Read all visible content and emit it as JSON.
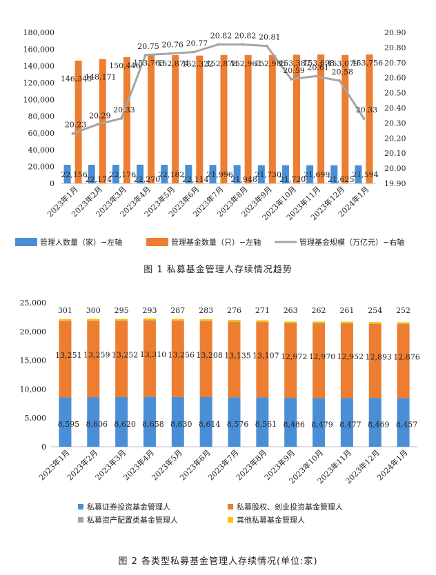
{
  "charts": [
    {
      "type": "bar",
      "caption": "图 1  私募基金管理人存续情况趋势",
      "categories": [
        "2023年1月",
        "2023年2月",
        "2023年3月",
        "2023年4月",
        "2023年5月",
        "2023年6月",
        "2023年7月",
        "2023年8月",
        "2023年9月",
        "2023年10月",
        "2023年11月",
        "2023年12月",
        "2024年1月"
      ],
      "left_axis": {
        "min": 0,
        "max": 180000,
        "ticks": [
          "0",
          "20,000",
          "40,000",
          "60,000",
          "80,000",
          "100,000",
          "120,000",
          "140,000",
          "160,000",
          "180,000"
        ]
      },
      "right_axis": {
        "min": 19.9,
        "max": 20.9,
        "ticks": [
          "19.90",
          "20.00",
          "20.10",
          "20.20",
          "20.30",
          "20.40",
          "20.50",
          "20.60",
          "20.70",
          "20.80",
          "20.90"
        ]
      },
      "series": [
        {
          "name": "管理人数量（家）−左轴",
          "kind": "bar",
          "axis": "left",
          "color": "#4a8fd6",
          "values": [
            22156,
            22174,
            22176,
            22270,
            22182,
            22114,
            21996,
            21948,
            21730,
            21720,
            21699,
            21625,
            21594
          ],
          "labels": [
            "22,156",
            "22,174",
            "22,176",
            "22,270",
            "22,182",
            "22,114",
            "21,996",
            "21,948",
            "21,730",
            "21,720",
            "21,699",
            "21,625",
            "21,594"
          ]
        },
        {
          "name": "管理基金数量（只）−左轴",
          "kind": "bar",
          "axis": "left",
          "color": "#ed7d31",
          "values": [
            146345,
            148171,
            150446,
            153763,
            152874,
            152322,
            152878,
            152961,
            152985,
            153387,
            153698,
            153079,
            153756
          ],
          "labels": [
            "146,345",
            "148,171",
            "150,446",
            "153,763",
            "152,874",
            "152,322",
            "152,878",
            "152,961",
            "152,985",
            "153,387",
            "153,698",
            "153,079",
            "153,756"
          ]
        },
        {
          "name": "管理基金规模（万亿元）−右轴",
          "kind": "line",
          "axis": "right",
          "color": "#a5a5a5",
          "values": [
            20.23,
            20.29,
            20.33,
            20.75,
            20.76,
            20.77,
            20.82,
            20.82,
            20.81,
            20.59,
            20.61,
            20.58,
            20.33
          ],
          "labels": [
            "20.23",
            "20.29",
            "20.33",
            "20.75",
            "20.76",
            "20.77",
            "20.82",
            "20.82",
            "20.81",
            "20.59",
            "20.61",
            "20.58",
            "20.33"
          ]
        }
      ]
    },
    {
      "type": "bar",
      "stacked": true,
      "caption": "图 2  各类型私募基金管理人存续情况(单位:家)",
      "categories": [
        "2023年1月",
        "2023年2月",
        "2023年3月",
        "2023年4月",
        "2023年5月",
        "2023年6月",
        "2023年7月",
        "2023年8月",
        "2023年9月",
        "2023年10月",
        "2023年11月",
        "2023年12月",
        "2024年1月"
      ],
      "y_axis": {
        "min": 0,
        "max": 25000,
        "ticks": [
          "0",
          "5,000",
          "10,000",
          "15,000",
          "20,000",
          "25,000"
        ]
      },
      "series": [
        {
          "name": "私募证券投资基金管理人",
          "color": "#4a8fd6",
          "values": [
            8595,
            8606,
            8620,
            8658,
            8630,
            8614,
            8576,
            8561,
            8486,
            8479,
            8477,
            8469,
            8457
          ],
          "labels": [
            "8,595",
            "8,606",
            "8,620",
            "8,658",
            "8,630",
            "8,614",
            "8,576",
            "8,561",
            "8,486",
            "8,479",
            "8,477",
            "8,469",
            "8,457"
          ]
        },
        {
          "name": "私募股权、创业投资基金管理人",
          "color": "#ed7d31",
          "values": [
            13251,
            13259,
            13252,
            13310,
            13256,
            13208,
            13135,
            13107,
            12972,
            12970,
            12952,
            12893,
            12876
          ],
          "labels": [
            "13,251",
            "13,259",
            "13,252",
            "13,310",
            "13,256",
            "13,208",
            "13,135",
            "13,107",
            "12,972",
            "12,970",
            "12,952",
            "12,893",
            "12,876"
          ]
        },
        {
          "name": "私募资产配置类基金管理人",
          "color": "#a5a5a5",
          "values": [
            9,
            9,
            9,
            9,
            9,
            9,
            9,
            9,
            9,
            9,
            9,
            9,
            9
          ],
          "labels": []
        },
        {
          "name": "其他私募基金管理人",
          "color": "#ffc000",
          "values": [
            301,
            300,
            295,
            293,
            287,
            283,
            276,
            271,
            263,
            262,
            261,
            254,
            252
          ],
          "labels": [
            "301",
            "300",
            "295",
            "293",
            "287",
            "283",
            "276",
            "271",
            "263",
            "262",
            "261",
            "254",
            "252"
          ]
        }
      ]
    }
  ]
}
